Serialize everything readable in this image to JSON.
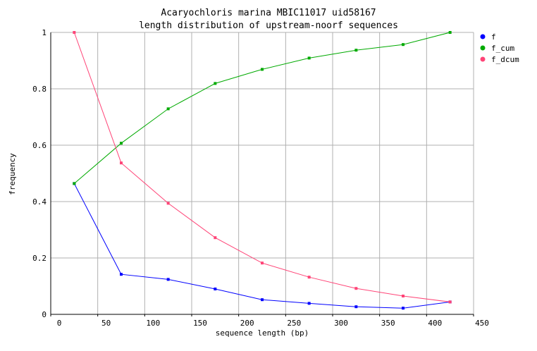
{
  "chart_data": {
    "type": "line",
    "title": "Acaryochloris marina MBIC11017 uid58167",
    "subtitle": "length distribution of upstream-noorf sequences",
    "xlabel": "sequence length (bp)",
    "ylabel": "frequency",
    "xlim": [
      0,
      450
    ],
    "ylim": [
      0,
      1
    ],
    "xticks": [
      "0",
      "50",
      "100",
      "150",
      "200",
      "250",
      "300",
      "350",
      "400",
      "450"
    ],
    "yticks": [
      "0",
      "0.2",
      "0.4",
      "0.6",
      "0.8",
      "1"
    ],
    "grid": true,
    "legend_position": "right",
    "x": [
      25,
      75,
      125,
      175,
      225,
      275,
      325,
      375,
      425
    ],
    "series": [
      {
        "name": "f",
        "color": "#0000ff",
        "values": [
          0.464,
          0.142,
          0.124,
          0.09,
          0.052,
          0.039,
          0.027,
          0.022,
          0.044
        ]
      },
      {
        "name": "f_cum",
        "color": "#00aa00",
        "values": [
          0.464,
          0.607,
          0.729,
          0.819,
          0.869,
          0.909,
          0.937,
          0.957,
          1.0
        ]
      },
      {
        "name": "f_dcum",
        "color": "#ff4477",
        "values": [
          1.0,
          0.537,
          0.394,
          0.272,
          0.182,
          0.132,
          0.092,
          0.065,
          0.044
        ]
      }
    ]
  }
}
